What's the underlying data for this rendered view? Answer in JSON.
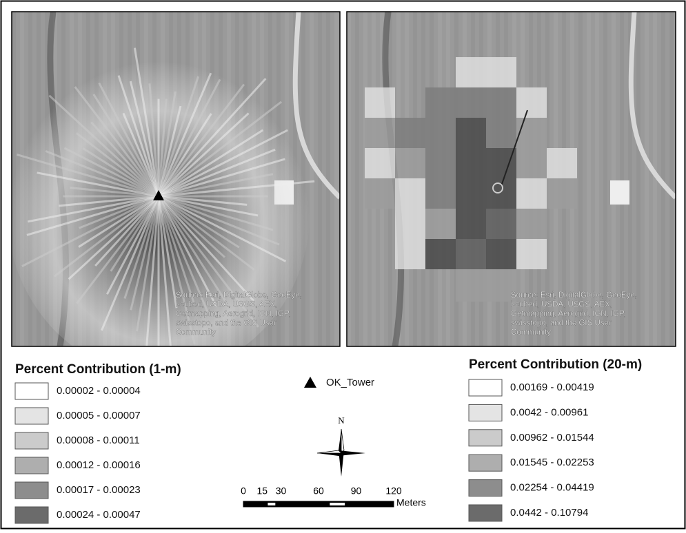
{
  "maps": [
    {
      "attribution": [
        "Source: Esri, DigitalGlobe, GeoEye,",
        "i-cubed, USDA, USGS, AEX,",
        "Getmapping, Aerogrid, IGN, IGP,",
        "swisstopo, and the GIS User",
        "Community"
      ]
    },
    {
      "attribution": [
        "Source: Esri, DigitalGlobe, GeoEye,",
        "i-cubed, USDA, USGS, AEX,",
        "Getmapping, Aerogrid, IGN, IGP,",
        "swisstopo, and the GIS User",
        "Community"
      ]
    }
  ],
  "legends": [
    {
      "title": "Percent Contribution (1-m)",
      "classes": [
        {
          "label": "0.00002 - 0.00004",
          "color": "#ffffff"
        },
        {
          "label": "0.00005 - 0.00007",
          "color": "#e4e4e4"
        },
        {
          "label": "0.00008 - 0.00011",
          "color": "#cbcbcb"
        },
        {
          "label": "0.00012 - 0.00016",
          "color": "#aeaeae"
        },
        {
          "label": "0.00017 - 0.00023",
          "color": "#8d8d8d"
        },
        {
          "label": "0.00024 - 0.00047",
          "color": "#6b6b6b"
        }
      ]
    },
    {
      "title": "Percent Contribution (20-m)",
      "classes": [
        {
          "label": "0.00169 - 0.00419",
          "color": "#ffffff"
        },
        {
          "label": "0.0042 - 0.00961",
          "color": "#e4e4e4"
        },
        {
          "label": "0.00962 - 0.01544",
          "color": "#cbcbcb"
        },
        {
          "label": "0.01545 - 0.02253",
          "color": "#aeaeae"
        },
        {
          "label": "0.02254 - 0.04419",
          "color": "#8d8d8d"
        },
        {
          "label": "0.0442 - 0.10794",
          "color": "#6b6b6b"
        }
      ]
    }
  ],
  "tower_label": "OK_Tower",
  "north_label": "N",
  "scale_bar": {
    "ticks": [
      0,
      15,
      30,
      60,
      90,
      120
    ],
    "unit": "Meters"
  }
}
